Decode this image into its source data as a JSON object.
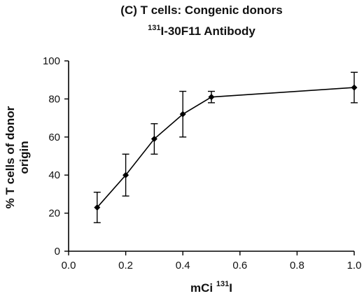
{
  "chart_data": {
    "type": "line",
    "title_line1": "(C) T cells: Congenic donors",
    "title_line2_sup": "131",
    "title_line2_rest": "I-30F11 Antibody",
    "xlabel_main": "mCi ",
    "xlabel_sup": "131",
    "xlabel_rest": "I",
    "ylabel_line1": "% T cells of donor",
    "ylabel_line2": "origin",
    "xlim": [
      0.0,
      1.0
    ],
    "ylim": [
      0,
      100
    ],
    "xticks": [
      0.0,
      0.2,
      0.4,
      0.6,
      0.8,
      1.0
    ],
    "xtick_labels": [
      "0.0",
      "0.2",
      "0.4",
      "0.6",
      "0.8",
      "1.0"
    ],
    "yticks": [
      0,
      20,
      40,
      60,
      80,
      100
    ],
    "ytick_labels": [
      "0",
      "20",
      "40",
      "60",
      "80",
      "100"
    ],
    "grid": false,
    "series": [
      {
        "marker": "diamond",
        "color": "#000000",
        "x": [
          0.1,
          0.2,
          0.3,
          0.4,
          0.5,
          1.0
        ],
        "y": [
          23,
          40,
          59,
          72,
          81,
          86
        ],
        "y_err": [
          8,
          11,
          8,
          12,
          3,
          8
        ]
      }
    ]
  }
}
